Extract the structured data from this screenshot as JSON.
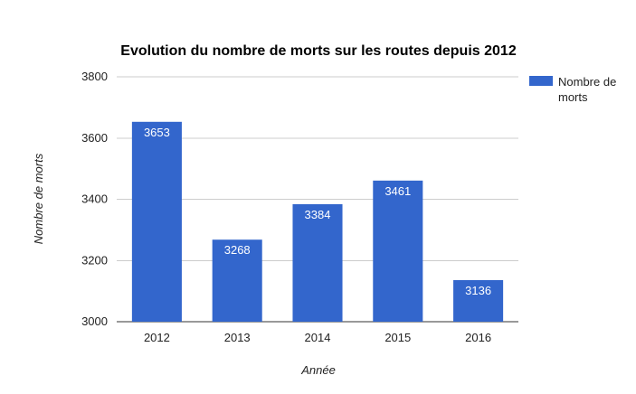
{
  "chart_data": {
    "type": "bar",
    "title": "Evolution du nombre de morts sur les routes depuis 2012",
    "xlabel": "Année",
    "ylabel": "Nombre de morts",
    "categories": [
      "2012",
      "2013",
      "2014",
      "2015",
      "2016"
    ],
    "series": [
      {
        "name": "Nombre de morts",
        "legend_lines": [
          "Nombre de",
          "morts"
        ],
        "values": [
          3653,
          3268,
          3384,
          3461,
          3136
        ],
        "color": "#3366cc"
      }
    ],
    "ylim": [
      3000,
      3800
    ],
    "yticks": [
      3000,
      3200,
      3400,
      3600,
      3800
    ],
    "grid": true,
    "legend_position": "right"
  }
}
